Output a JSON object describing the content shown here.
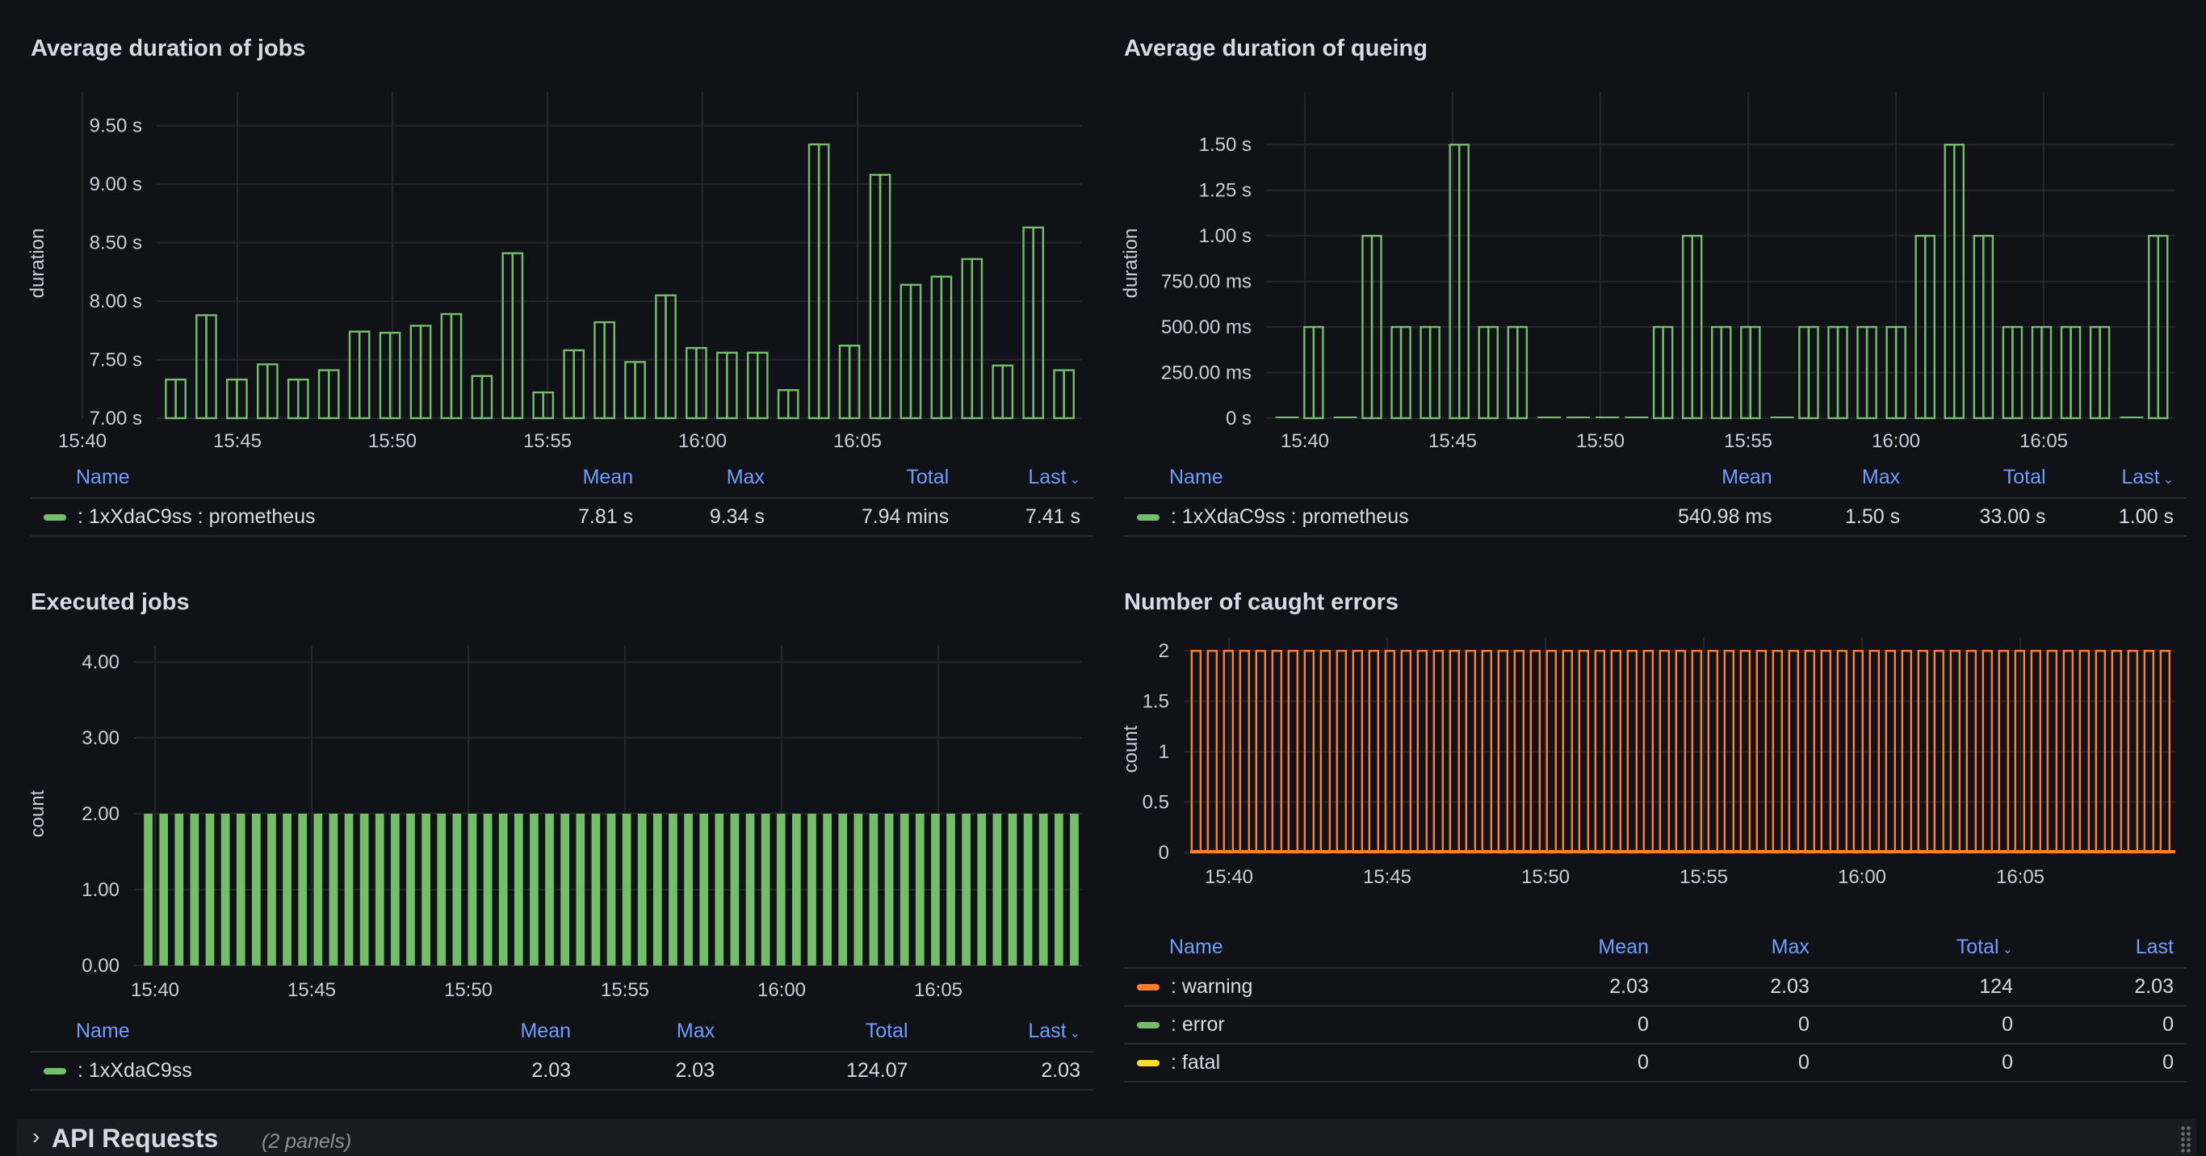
{
  "panels": [
    {
      "title": "Average duration of jobs",
      "legend": {
        "headers": [
          "Name",
          "Mean",
          "Max",
          "Total",
          "Last"
        ],
        "sort_column": "Last",
        "rows": [
          {
            "name": ": 1xXdaC9ss : prometheus",
            "color": "#73bf69",
            "values": [
              "7.81 s",
              "9.34 s",
              "7.94 mins",
              "7.41 s"
            ]
          }
        ]
      }
    },
    {
      "title": "Average duration of queing",
      "legend": {
        "headers": [
          "Name",
          "Mean",
          "Max",
          "Total",
          "Last"
        ],
        "sort_column": "Last",
        "rows": [
          {
            "name": ": 1xXdaC9ss : prometheus",
            "color": "#73bf69",
            "values": [
              "540.98 ms",
              "1.50 s",
              "33.00 s",
              "1.00 s"
            ]
          }
        ]
      }
    },
    {
      "title": "Executed jobs",
      "legend": {
        "headers": [
          "Name",
          "Mean",
          "Max",
          "Total",
          "Last"
        ],
        "sort_column": "Last",
        "rows": [
          {
            "name": ": 1xXdaC9ss",
            "color": "#73bf69",
            "values": [
              "2.03",
              "2.03",
              "124.07",
              "2.03"
            ]
          }
        ]
      }
    },
    {
      "title": "Number of caught errors",
      "legend": {
        "headers": [
          "Name",
          "Mean",
          "Max",
          "Total",
          "Last"
        ],
        "sort_column": "Total",
        "rows": [
          {
            "name": ": warning",
            "color": "#ff7f2a",
            "values": [
              "2.03",
              "2.03",
              "124",
              "2.03"
            ]
          },
          {
            "name": ": error",
            "color": "#73bf69",
            "values": [
              "0",
              "0",
              "0",
              "0"
            ]
          },
          {
            "name": ": fatal",
            "color": "#fade2a",
            "values": [
              "0",
              "0",
              "0",
              "0"
            ]
          }
        ]
      }
    }
  ],
  "chart_data": [
    {
      "type": "bar",
      "title": "Average duration of jobs",
      "ylabel": "duration",
      "xlabel": "",
      "x_ticks": [
        "15:40",
        "15:45",
        "15:50",
        "15:55",
        "16:00",
        "16:05"
      ],
      "y_ticks": [
        "7.00 s",
        "7.50 s",
        "8.00 s",
        "8.50 s",
        "9.00 s",
        "9.50 s"
      ],
      "ylim": [
        7.0,
        9.65
      ],
      "color": "#73bf69",
      "style": "outline",
      "series": [
        {
          "name": ": 1xXdaC9ss : prometheus",
          "values": [
            7.33,
            7.88,
            7.33,
            7.46,
            7.33,
            7.41,
            7.74,
            7.73,
            7.79,
            7.89,
            7.36,
            8.41,
            7.22,
            7.58,
            7.82,
            7.48,
            8.05,
            7.6,
            7.56,
            7.56,
            7.24,
            9.34,
            7.62,
            9.08,
            8.14,
            8.21,
            8.36,
            7.45,
            8.63,
            7.41
          ]
        }
      ]
    },
    {
      "type": "bar",
      "title": "Average duration of queing",
      "ylabel": "duration",
      "xlabel": "",
      "x_ticks": [
        "15:40",
        "15:45",
        "15:50",
        "15:55",
        "16:00",
        "16:05"
      ],
      "y_ticks": [
        "0 s",
        "250.00 ms",
        "500.00 ms",
        "750.00 ms",
        "1.00 s",
        "1.25 s",
        "1.50 s"
      ],
      "ylim": [
        0,
        1.7
      ],
      "color": "#73bf69",
      "style": "outline",
      "series": [
        {
          "name": ": 1xXdaC9ss : prometheus",
          "values": [
            0,
            0.5,
            0,
            1.0,
            0.5,
            0.5,
            1.5,
            0.5,
            0.5,
            0,
            0,
            0,
            0,
            0.5,
            1.0,
            0.5,
            0.5,
            0,
            0.5,
            0.5,
            0.5,
            0.5,
            1.0,
            1.5,
            1.0,
            0.5,
            0.5,
            0.5,
            0.5,
            0,
            1.0
          ]
        }
      ]
    },
    {
      "type": "bar",
      "title": "Executed jobs",
      "ylabel": "count",
      "xlabel": "",
      "x_ticks": [
        "15:40",
        "15:45",
        "15:50",
        "15:55",
        "16:00",
        "16:05"
      ],
      "y_ticks": [
        "0.00",
        "1.00",
        "2.00",
        "3.00",
        "4.00"
      ],
      "ylim": [
        0,
        4
      ],
      "color": "#73bf69",
      "style": "filled",
      "series": [
        {
          "name": ": 1xXdaC9ss",
          "values": [
            2,
            2,
            2,
            2,
            2,
            2,
            2,
            2,
            2,
            2,
            2,
            2,
            2,
            2,
            2,
            2,
            2,
            2,
            2,
            2,
            2,
            2,
            2,
            2,
            2,
            2,
            2,
            2,
            2,
            2,
            2,
            2,
            2,
            2,
            2,
            2,
            2,
            2,
            2,
            2,
            2,
            2,
            2,
            2,
            2,
            2,
            2,
            2,
            2,
            2,
            2,
            2,
            2,
            2,
            2,
            2,
            2,
            2,
            2,
            2,
            2
          ]
        }
      ]
    },
    {
      "type": "bar",
      "title": "Number of caught errors",
      "ylabel": "count",
      "xlabel": "",
      "x_ticks": [
        "15:40",
        "15:45",
        "15:50",
        "15:55",
        "16:00",
        "16:05"
      ],
      "y_ticks": [
        "0",
        "0.5",
        "1",
        "1.5",
        "2"
      ],
      "ylim": [
        0,
        2.05
      ],
      "color": "#ff7f2a",
      "style": "outline",
      "series": [
        {
          "name": ": warning",
          "values": [
            2,
            2,
            2,
            2,
            2,
            2,
            2,
            2,
            2,
            2,
            2,
            2,
            2,
            2,
            2,
            2,
            2,
            2,
            2,
            2,
            2,
            2,
            2,
            2,
            2,
            2,
            2,
            2,
            2,
            2,
            2,
            2,
            2,
            2,
            2,
            2,
            2,
            2,
            2,
            2,
            2,
            2,
            2,
            2,
            2,
            2,
            2,
            2,
            2,
            2,
            2,
            2,
            2,
            2,
            2,
            2,
            2,
            2,
            2,
            2,
            2
          ]
        }
      ]
    }
  ],
  "row": {
    "chevron": "›",
    "title": "API Requests",
    "panel_count": "(2 panels)"
  }
}
